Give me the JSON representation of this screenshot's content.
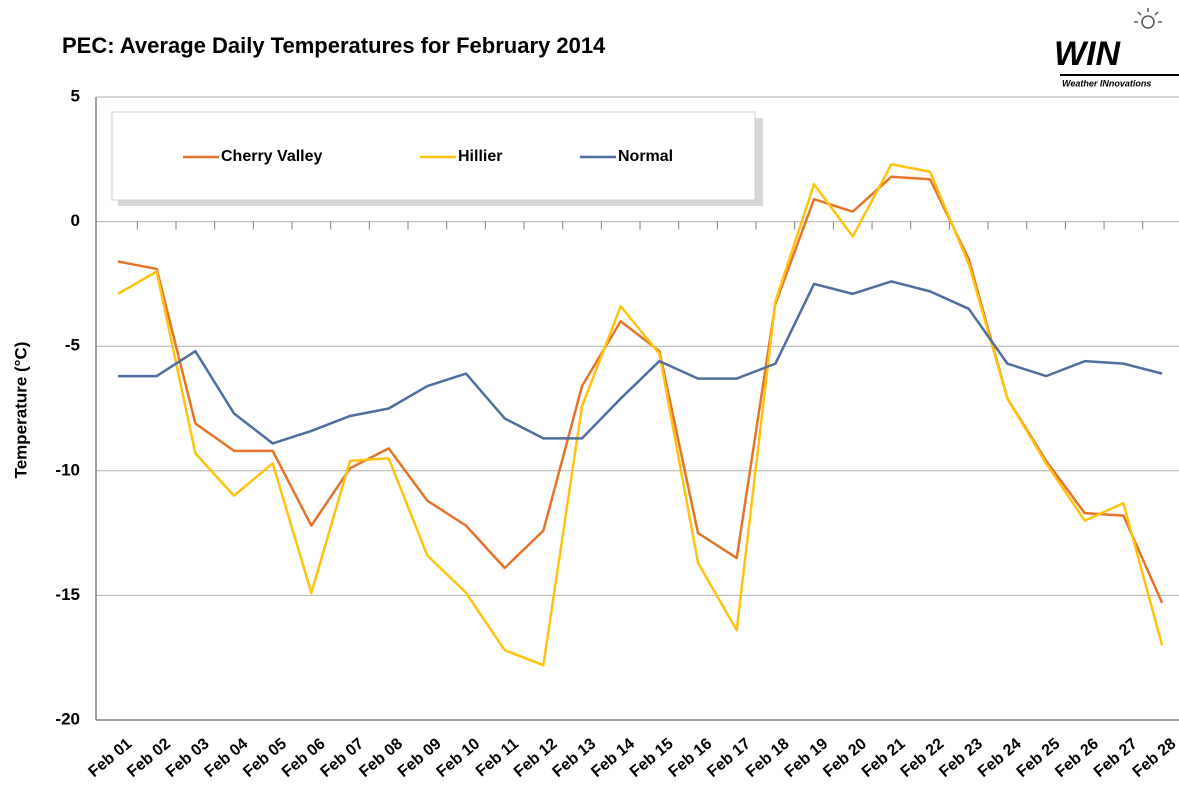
{
  "chart_data": {
    "type": "line",
    "title": "PEC: Average Daily Temperatures for February 2014",
    "logo": {
      "mark": "WIN",
      "subtitle": "Weather INnovations"
    },
    "y_label": "Temperature (°C)",
    "categories": [
      "Feb 01",
      "Feb 02",
      "Feb 03",
      "Feb 04",
      "Feb 05",
      "Feb 06",
      "Feb 07",
      "Feb 08",
      "Feb 09",
      "Feb 10",
      "Feb 11",
      "Feb 12",
      "Feb 13",
      "Feb 14",
      "Feb 15",
      "Feb 16",
      "Feb 17",
      "Feb 18",
      "Feb 19",
      "Feb 20",
      "Feb 21",
      "Feb 22",
      "Feb 23",
      "Feb 24",
      "Feb 25",
      "Feb 26",
      "Feb 27",
      "Feb 28"
    ],
    "series": [
      {
        "name": "Cherry Valley",
        "color": "#e5742a",
        "values": [
          -1.6,
          -1.9,
          -8.1,
          -9.2,
          -9.2,
          -12.2,
          -9.9,
          -9.1,
          -11.2,
          -12.2,
          -13.9,
          -12.4,
          -6.6,
          -4.0,
          -5.2,
          -12.5,
          -13.5,
          -3.3,
          0.9,
          0.4,
          1.8,
          1.7,
          -1.5,
          -7.1,
          -9.6,
          -11.7,
          -11.8,
          -15.3
        ]
      },
      {
        "name": "Hillier",
        "color": "#ffc20e",
        "values": [
          -2.9,
          -2.0,
          -9.3,
          -11.0,
          -9.7,
          -14.9,
          -9.6,
          -9.5,
          -13.4,
          -14.9,
          -17.2,
          -17.8,
          -7.4,
          -3.4,
          -5.3,
          -13.7,
          -16.4,
          -3.2,
          1.5,
          -0.6,
          2.3,
          2.0,
          -1.7,
          -7.1,
          -9.7,
          -12.0,
          -11.3,
          -17.0
        ]
      },
      {
        "name": "Normal",
        "color": "#4e6e9e",
        "values": [
          -6.2,
          -6.2,
          -5.2,
          -7.7,
          -8.9,
          -8.4,
          -7.8,
          -7.5,
          -6.6,
          -6.1,
          -7.9,
          -8.7,
          -8.7,
          -7.1,
          -5.6,
          -6.3,
          -6.3,
          -5.7,
          -2.5,
          -2.9,
          -2.4,
          -2.8,
          -3.5,
          -5.7,
          -6.2,
          -5.6,
          -5.7,
          -6.1
        ]
      }
    ],
    "ylim": [
      -20,
      5
    ],
    "yticks": [
      -20,
      -15,
      -10,
      -5,
      0,
      5
    ],
    "grid": true,
    "legend": "top-left"
  }
}
